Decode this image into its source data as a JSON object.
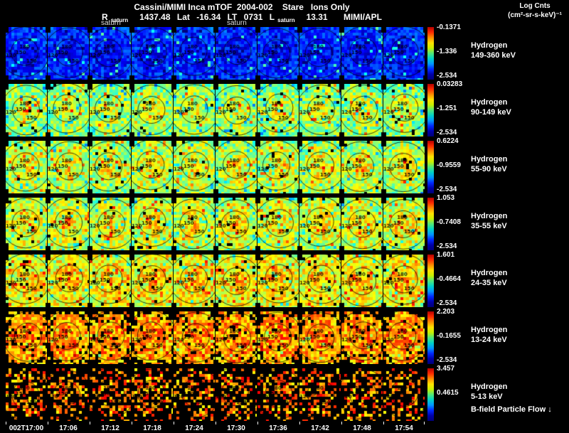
{
  "header": {
    "title": "Cassini/MIMI Inca mTOF  2004-002    Stare   Ions Only",
    "r_label": "R",
    "r_sub": "saturn",
    "r_value": "1437.48",
    "lat_label": "Lat",
    "lat_value": "-16.34",
    "lt_label": "LT",
    "lt_value": "0731",
    "l_label": "L",
    "l_sub": "saturn",
    "l_value": "13.31",
    "credit": "MIMI/APL",
    "legend_line1": "Log Cnts",
    "legend_line2": "(cm²-sr-s-keV)⁻¹"
  },
  "chart_data": {
    "type": "heatmap",
    "title": "Cassini/MIMI Inca mTOF 2004-002 Stare Ions Only",
    "subtitle": "R_saturn 1437.48  Lat -16.34  LT 0731  L_saturn 13.31  MIMI/APL",
    "units": "Log Cnts (cm²-sr-s-keV)⁻¹",
    "x_ticks": [
      "002T17:00",
      "17:06",
      "17:12",
      "17:18",
      "17:24",
      "17:30",
      "17:36",
      "17:42",
      "17:48",
      "17:54"
    ],
    "rows": [
      {
        "species": "Hydrogen",
        "energy": "149-360 keV",
        "cbar_max": "-0.1371",
        "cbar_mid": "-1.336",
        "cbar_min": "-2.534"
      },
      {
        "species": "Hydrogen",
        "energy": "90-149 keV",
        "cbar_max": "0.03283",
        "cbar_mid": "-1.251",
        "cbar_min": "-2.534"
      },
      {
        "species": "Hydrogen",
        "energy": "55-90 keV",
        "cbar_max": "0.6224",
        "cbar_mid": "-0.9559",
        "cbar_min": "-2.534"
      },
      {
        "species": "Hydrogen",
        "energy": "35-55 keV",
        "cbar_max": "1.053",
        "cbar_mid": "-0.7408",
        "cbar_min": "-2.534"
      },
      {
        "species": "Hydrogen",
        "energy": "24-35 keV",
        "cbar_max": "1.601",
        "cbar_mid": "-0.4664",
        "cbar_min": "-2.534"
      },
      {
        "species": "Hydrogen",
        "energy": "13-24 keV",
        "cbar_max": "2.203",
        "cbar_mid": "-0.1655",
        "cbar_min": "-2.534"
      },
      {
        "species": "Hydrogen",
        "energy": "5-13 keV",
        "cbar_max": "3.457",
        "cbar_mid": "0.4615",
        "cbar_min": ""
      }
    ],
    "contour_levels": [
      "120",
      "150",
      "180"
    ],
    "saturn_markers": [
      {
        "label": "saturn",
        "column": 3
      },
      {
        "label": "saturn",
        "column": 6
      }
    ],
    "bfield_label": "B-field Particle Flow",
    "colorbar_colors": [
      "#b40000",
      "#ff2a00",
      "#ff8c00",
      "#ffe100",
      "#c8f000",
      "#50e878",
      "#00d2c8",
      "#0096ff",
      "#0028ff",
      "#0000aa",
      "#000078"
    ]
  }
}
